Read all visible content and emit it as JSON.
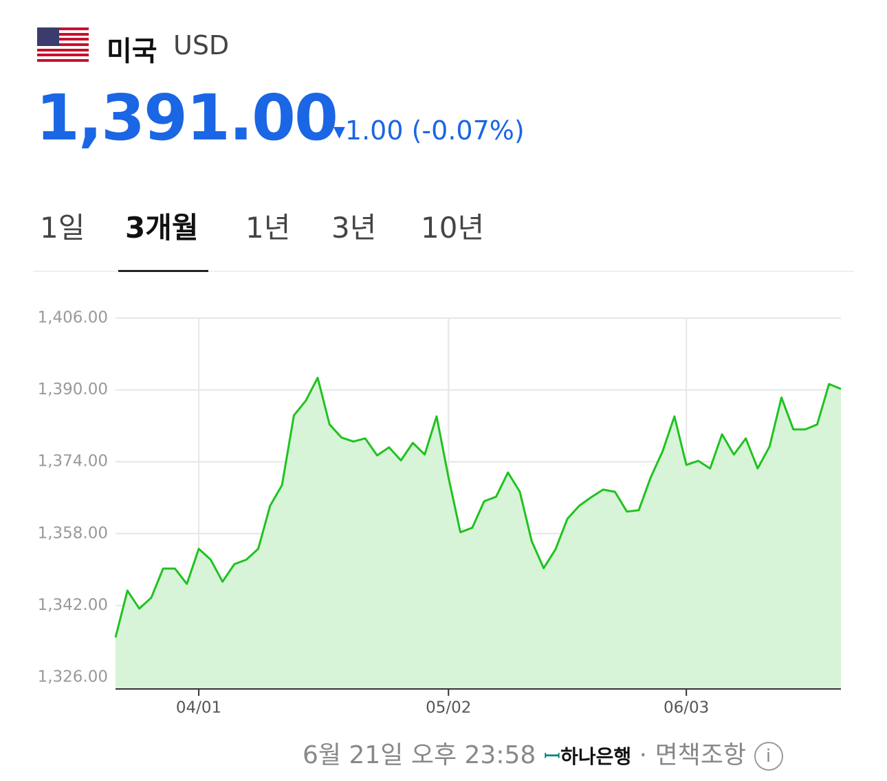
{
  "header": {
    "country": "미국",
    "currency": "USD"
  },
  "quote": {
    "price": "1,391.00",
    "change": "1.00 (-0.07%)"
  },
  "tabs": [
    "1일",
    "3개월",
    "1년",
    "3년",
    "10년"
  ],
  "footer": {
    "timestamp": "6월 21일 오후 23:58",
    "bank": "하나은행",
    "disclaimer": "면책조항"
  },
  "chart_data": {
    "type": "area",
    "categories": [
      null,
      null,
      null,
      null,
      null,
      null,
      null,
      "04/01",
      null,
      null,
      null,
      null,
      null,
      null,
      null,
      null,
      null,
      null,
      null,
      null,
      null,
      null,
      null,
      null,
      null,
      null,
      null,
      null,
      "05/02",
      null,
      null,
      null,
      null,
      null,
      null,
      null,
      null,
      null,
      null,
      null,
      null,
      null,
      null,
      null,
      null,
      null,
      null,
      null,
      "06/03",
      null,
      null,
      null,
      null,
      null,
      null,
      null,
      null,
      null,
      null,
      null,
      null,
      null
    ],
    "values": [
      1334.9,
      1345.3,
      1341.3,
      1343.7,
      1350.2,
      1350.2,
      1346.8,
      1354.6,
      1352.2,
      1347.3,
      1351.2,
      1352.2,
      1354.6,
      1364.2,
      1368.8,
      1384.3,
      1387.6,
      1392.7,
      1382.3,
      1379.4,
      1378.5,
      1379.2,
      1375.4,
      1377.2,
      1374.3,
      1378.2,
      1375.6,
      1384.1,
      1370.5,
      1358.3,
      1359.3,
      1365.2,
      1366.2,
      1371.6,
      1367.3,
      1356.3,
      1350.3,
      1354.5,
      1361.3,
      1364.2,
      1366.1,
      1367.8,
      1367.3,
      1362.9,
      1363.2,
      1370.5,
      1376.3,
      1384.1,
      1373.3,
      1374.2,
      1372.5,
      1380.1,
      1375.6,
      1379.2,
      1372.5,
      1377.4,
      1388.3,
      1381.2,
      1381.2,
      1382.3,
      1391.3,
      1390.2
    ],
    "color": "#1ec31e",
    "fill": "#d8f4d8",
    "ylim": [
      1323.4,
      1406
    ],
    "yticks": [
      {
        "value": 1326,
        "label": "1,326.00"
      },
      {
        "value": 1342,
        "label": "1,342.00"
      },
      {
        "value": 1358,
        "label": "1,358.00"
      },
      {
        "value": 1374,
        "label": "1,374.00"
      },
      {
        "value": 1390,
        "label": "1,390.00"
      },
      {
        "value": 1406,
        "label": "1,406.00"
      }
    ],
    "grid": true
  }
}
